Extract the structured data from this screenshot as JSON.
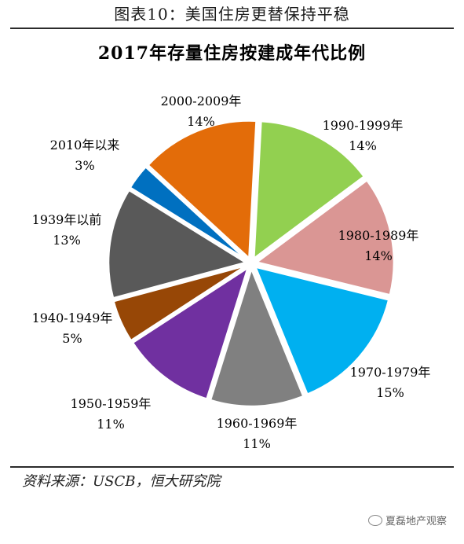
{
  "figure_title": "图表10：美国住房更替保持平稳",
  "source": "资料来源：USCB，恒大研究院",
  "watermark": "夏磊地产观察",
  "chart_data": {
    "type": "pie",
    "title": "2017年存量住房按建成年代比例",
    "slices": [
      {
        "label": "1990-1999年",
        "value": 14,
        "pct_text": "14%",
        "color": "#92d050"
      },
      {
        "label": "1980-1989年",
        "value": 14,
        "pct_text": "14%",
        "color": "#da9694"
      },
      {
        "label": "1970-1979年",
        "value": 15,
        "pct_text": "15%",
        "color": "#00b0f0"
      },
      {
        "label": "1960-1969年",
        "value": 11,
        "pct_text": "11%",
        "color": "#808080"
      },
      {
        "label": "1950-1959年",
        "value": 11,
        "pct_text": "11%",
        "color": "#7030a0"
      },
      {
        "label": "1940-1949年",
        "value": 5,
        "pct_text": "5%",
        "color": "#974706"
      },
      {
        "label": "1939年以前",
        "value": 13,
        "pct_text": "13%",
        "color": "#595959"
      },
      {
        "label": "2010年以来",
        "value": 3,
        "pct_text": "3%",
        "color": "#0070c0"
      },
      {
        "label": "2000-2009年",
        "value": 14,
        "pct_text": "14%",
        "color": "#e36c09"
      }
    ]
  }
}
